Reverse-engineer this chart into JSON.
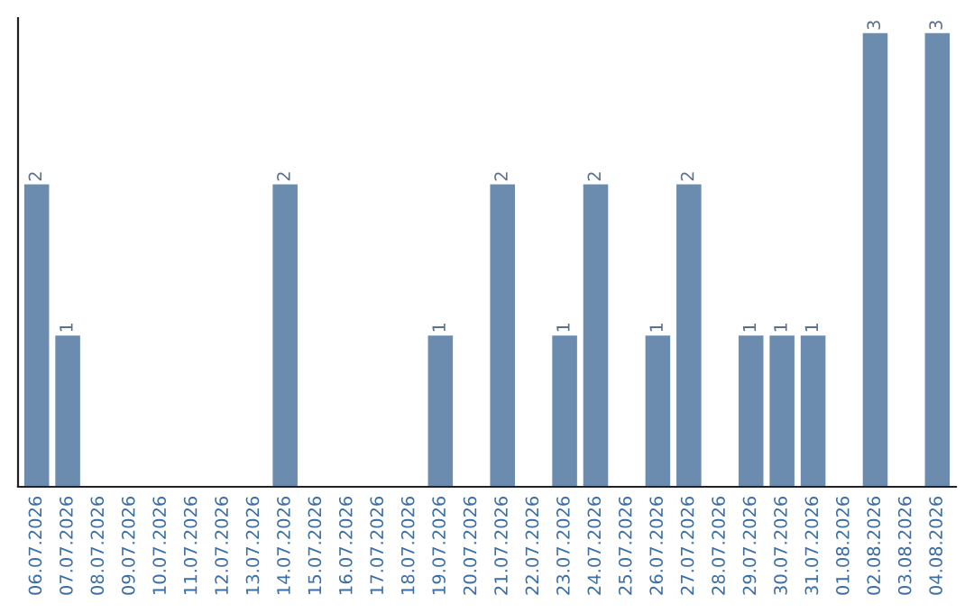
{
  "chart_data": {
    "type": "bar",
    "categories": [
      "06.07.2026",
      "07.07.2026",
      "08.07.2026",
      "09.07.2026",
      "10.07.2026",
      "11.07.2026",
      "12.07.2026",
      "13.07.2026",
      "14.07.2026",
      "15.07.2026",
      "16.07.2026",
      "17.07.2026",
      "18.07.2026",
      "19.07.2026",
      "20.07.2026",
      "21.07.2026",
      "22.07.2026",
      "23.07.2026",
      "24.07.2026",
      "25.07.2026",
      "26.07.2026",
      "27.07.2026",
      "28.07.2026",
      "29.07.2026",
      "30.07.2026",
      "31.07.2026",
      "01.08.2026",
      "02.08.2026",
      "03.08.2026",
      "04.08.2026"
    ],
    "values": [
      2,
      1,
      0,
      0,
      0,
      0,
      0,
      0,
      2,
      0,
      0,
      0,
      0,
      1,
      0,
      2,
      0,
      1,
      2,
      0,
      1,
      2,
      0,
      1,
      1,
      1,
      0,
      3,
      0,
      3
    ],
    "value_labels": [
      "2",
      "1",
      null,
      null,
      null,
      null,
      null,
      null,
      "2",
      null,
      null,
      null,
      null,
      "1",
      null,
      "2",
      null,
      "1",
      "2",
      null,
      "1",
      "2",
      null,
      "1",
      "1",
      "1",
      null,
      "3",
      null,
      "3"
    ],
    "color": "#6b8cae",
    "ylim": [
      0,
      3.1
    ],
    "tick_labels": "x",
    "grid": false,
    "legend": false
  }
}
